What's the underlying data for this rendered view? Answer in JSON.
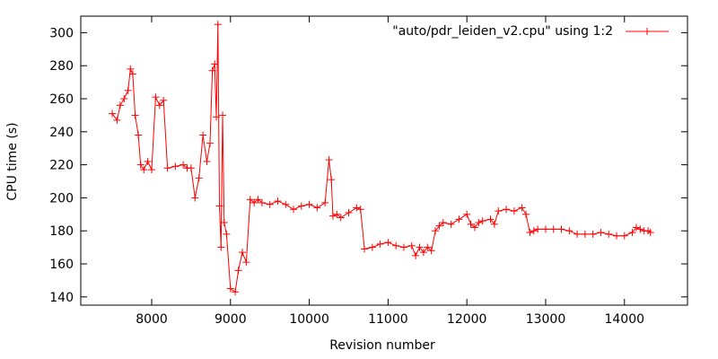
{
  "chart_data": {
    "type": "line",
    "xlabel": "Revision number",
    "ylabel": "CPU time (s)",
    "xlim": [
      7100,
      14800
    ],
    "ylim": [
      135,
      310
    ],
    "x_ticks": [
      8000,
      9000,
      10000,
      11000,
      12000,
      13000,
      14000
    ],
    "y_ticks": [
      140,
      160,
      180,
      200,
      220,
      240,
      260,
      280,
      300
    ],
    "grid": false,
    "legend": "top-right",
    "colors": {
      "series": "#ff0000",
      "axis": "#000000"
    },
    "series": [
      {
        "name": "\"auto/pdr_leiden_v2.cpu\" using 1:2",
        "marker": "plus",
        "x": [
          7500,
          7560,
          7600,
          7650,
          7700,
          7730,
          7760,
          7790,
          7830,
          7860,
          7900,
          7950,
          8000,
          8050,
          8100,
          8150,
          8200,
          8300,
          8400,
          8450,
          8500,
          8550,
          8600,
          8650,
          8700,
          8740,
          8770,
          8800,
          8820,
          8840,
          8860,
          8880,
          8900,
          8920,
          8950,
          9000,
          9060,
          9100,
          9150,
          9200,
          9250,
          9300,
          9350,
          9400,
          9500,
          9600,
          9700,
          9800,
          9900,
          10000,
          10100,
          10200,
          10250,
          10280,
          10300,
          10350,
          10400,
          10500,
          10600,
          10650,
          10700,
          10800,
          10900,
          11000,
          11100,
          11200,
          11300,
          11350,
          11400,
          11450,
          11500,
          11550,
          11600,
          11650,
          11700,
          11800,
          11900,
          12000,
          12050,
          12100,
          12150,
          12200,
          12300,
          12350,
          12400,
          12500,
          12600,
          12700,
          12750,
          12800,
          12850,
          12900,
          13000,
          13100,
          13200,
          13300,
          13400,
          13500,
          13600,
          13700,
          13800,
          13900,
          14000,
          14100,
          14150,
          14200,
          14250,
          14300,
          14330
        ],
        "y": [
          251,
          247,
          256,
          260,
          265,
          278,
          275,
          250,
          238,
          220,
          217,
          222,
          217,
          261,
          256,
          259,
          218,
          219,
          220,
          218,
          218,
          200,
          212,
          238,
          222,
          233,
          277,
          281,
          249,
          305,
          195,
          170,
          250,
          185,
          178,
          145,
          143,
          156,
          167,
          161,
          199,
          197,
          199,
          197,
          196,
          198,
          196,
          193,
          195,
          196,
          194,
          197,
          223,
          211,
          189,
          190,
          188,
          191,
          194,
          193,
          169,
          170,
          172,
          173,
          171,
          170,
          171,
          165,
          170,
          167,
          170,
          168,
          180,
          183,
          185,
          184,
          187,
          190,
          184,
          182,
          185,
          186,
          187,
          184,
          192,
          193,
          192,
          194,
          190,
          179,
          180,
          181,
          181,
          181,
          181,
          180,
          178,
          178,
          178,
          179,
          178,
          177,
          177,
          179,
          182,
          181,
          180,
          180,
          179
        ]
      }
    ]
  }
}
